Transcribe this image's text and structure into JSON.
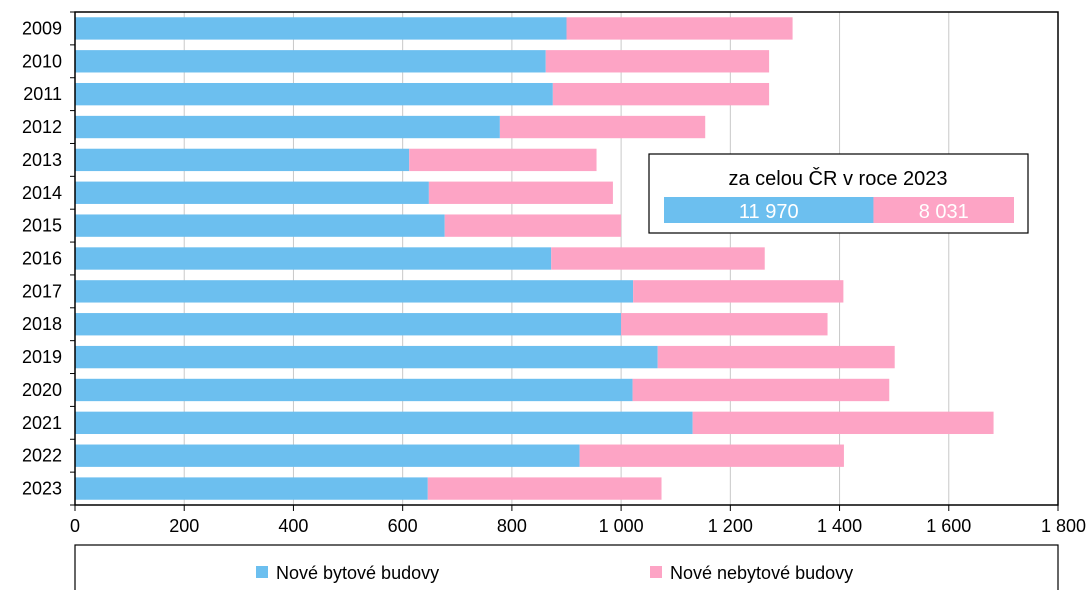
{
  "chart_data": {
    "type": "bar",
    "orientation": "horizontal",
    "stacked": true,
    "categories": [
      "2009",
      "2010",
      "2011",
      "2012",
      "2013",
      "2014",
      "2015",
      "2016",
      "2017",
      "2018",
      "2019",
      "2020",
      "2021",
      "2022",
      "2023"
    ],
    "series": [
      {
        "name": "Nové bytové budovy",
        "color": "#6cbfef",
        "values": [
          900,
          862,
          875,
          778,
          612,
          648,
          677,
          872,
          1022,
          1000,
          1067,
          1021,
          1131,
          924,
          646
        ]
      },
      {
        "name": "Nové nebytové budovy",
        "color": "#fda4c5",
        "values": [
          414,
          409,
          396,
          376,
          343,
          337,
          323,
          391,
          385,
          378,
          434,
          470,
          551,
          484,
          428
        ]
      }
    ],
    "xlim": [
      0,
      1800
    ],
    "xticks": [
      0,
      200,
      400,
      600,
      800,
      1000,
      1200,
      1400,
      1600,
      1800
    ],
    "xtick_labels": [
      "0",
      "200",
      "400",
      "600",
      "800",
      "1 000",
      "1 200",
      "1 400",
      "1 600",
      "1 800"
    ],
    "grid": "vertical",
    "legend_position": "bottom",
    "inset": {
      "title": "za celou ČR v roce 2023",
      "values": [
        11970,
        8031
      ],
      "labels": [
        "11 970",
        "8 031"
      ]
    }
  }
}
